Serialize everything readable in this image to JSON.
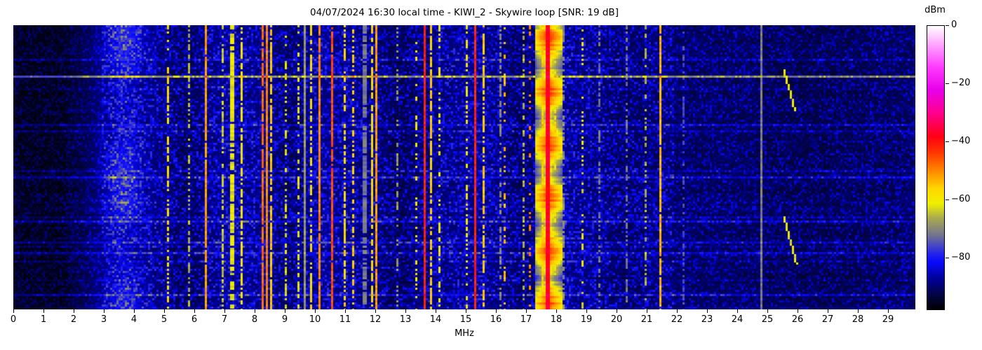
{
  "chart_data": {
    "type": "heatmap",
    "title": "04/07/2024 16:30 local time - KIWI_2 - Skywire loop [SNR: 19 dB]",
    "xlabel": "MHz",
    "x_range": [
      0,
      29.9
    ],
    "x_ticks": [
      "0",
      "1",
      "2",
      "3",
      "4",
      "5",
      "6",
      "7",
      "8",
      "9",
      "10",
      "11",
      "12",
      "13",
      "14",
      "15",
      "16",
      "17",
      "18",
      "19",
      "20",
      "21",
      "22",
      "23",
      "24",
      "25",
      "26",
      "27",
      "28",
      "29"
    ],
    "grid": false,
    "colorbar": {
      "label": "dBm",
      "tick_labels": [
        "0",
        "−20",
        "−40",
        "−60",
        "−80"
      ],
      "tick_values": [
        0,
        -20,
        -40,
        -60,
        -80
      ],
      "range_db": [
        0,
        -97.6
      ],
      "position": "right"
    },
    "colormap": [
      [
        0,
        255,
        255,
        255
      ],
      [
        -6,
        255,
        170,
        255
      ],
      [
        -14,
        255,
        60,
        255
      ],
      [
        -22,
        232,
        0,
        232
      ],
      [
        -30,
        255,
        0,
        140
      ],
      [
        -38,
        255,
        0,
        20
      ],
      [
        -44,
        255,
        60,
        0
      ],
      [
        -50,
        255,
        140,
        0
      ],
      [
        -56,
        255,
        215,
        0
      ],
      [
        -61,
        240,
        240,
        0
      ],
      [
        -66,
        170,
        170,
        80
      ],
      [
        -72,
        115,
        115,
        145
      ],
      [
        -78,
        40,
        40,
        230
      ],
      [
        -81,
        10,
        10,
        255
      ],
      [
        -87,
        0,
        0,
        150
      ],
      [
        -93,
        3,
        3,
        60
      ],
      [
        -97.6,
        0,
        0,
        0
      ]
    ],
    "noise": {
      "floor_dark": -97,
      "dark_limit_mhz": 1.6,
      "ramp_limit_mhz": 2.9,
      "floor_mid": -91.3,
      "mid_limit_mhz": 21.9,
      "floor_high": -93,
      "spread_dark": 8,
      "spread_mid": 13,
      "spread_high": 10,
      "shapes": [
        [
          5.75,
          -2.5,
          0.45
        ],
        [
          9.15,
          -2.2,
          0.35
        ],
        [
          12.85,
          -2.8,
          0.55
        ],
        [
          16.9,
          -2.2,
          0.5
        ],
        [
          20.4,
          -1.8,
          0.7
        ],
        [
          26.5,
          -1.2,
          1.8
        ],
        [
          7.3,
          1.4,
          0.5
        ],
        [
          10.3,
          1.0,
          0.6
        ],
        [
          15.4,
          0.8,
          0.5
        ],
        [
          18.0,
          1.2,
          0.5
        ]
      ],
      "cloud": {
        "center": 3.68,
        "sigma": 0.45,
        "amp": 9.5
      }
    },
    "signals": [
      [
        5.15,
        -58,
        0.05,
        0.6
      ],
      [
        5.85,
        -66,
        0.05,
        0.5
      ],
      [
        6.35,
        -52,
        0.06,
        0.95
      ],
      [
        6.95,
        -64,
        0.05,
        0.55
      ],
      [
        7.25,
        -62,
        0.12,
        0.8
      ],
      [
        7.58,
        -60,
        0.05,
        0.7
      ],
      [
        8.23,
        -48,
        0.05,
        0.9
      ],
      [
        8.4,
        -50,
        0.06,
        1
      ],
      [
        8.52,
        -56,
        0.04,
        0.8
      ],
      [
        9.05,
        -62,
        0.04,
        0.5
      ],
      [
        9.45,
        -62,
        0.04,
        0.5
      ],
      [
        9.62,
        -68,
        0.08,
        1
      ],
      [
        9.85,
        -58,
        0.05,
        0.6
      ],
      [
        10.12,
        -50,
        0.08,
        0.95
      ],
      [
        10.56,
        -46,
        0.05,
        0.95
      ],
      [
        11.0,
        -57,
        0.05,
        0.7
      ],
      [
        11.25,
        -56,
        0.05,
        0.5
      ],
      [
        11.62,
        -72,
        0.12,
        0.9
      ],
      [
        11.88,
        -58,
        0.05,
        0.8
      ],
      [
        12.05,
        -52,
        0.07,
        0.95
      ],
      [
        12.75,
        -68,
        0.04,
        0.4
      ],
      [
        13.35,
        -60,
        0.04,
        0.3
      ],
      [
        13.62,
        -42,
        0.08,
        1
      ],
      [
        13.8,
        -56,
        0.05,
        0.8
      ],
      [
        14.1,
        -60,
        0.04,
        0.35
      ],
      [
        15.0,
        -60,
        0.04,
        0.5
      ],
      [
        15.32,
        -42,
        0.09,
        1
      ],
      [
        15.58,
        -56,
        0.05,
        0.7
      ],
      [
        16.1,
        -70,
        0.1,
        0.6
      ],
      [
        16.3,
        -54,
        0.04,
        0.25
      ],
      [
        16.9,
        -66,
        0.05,
        0.5
      ],
      [
        17.08,
        -50,
        0.04,
        0.22
      ],
      [
        17.5,
        -56,
        0.05,
        0.85
      ],
      [
        17.68,
        -37,
        0.14,
        1,
        1
      ],
      [
        17.95,
        -58,
        0.05,
        0.5
      ],
      [
        18.25,
        -70,
        0.08,
        0.6
      ],
      [
        18.85,
        -62,
        0.04,
        0.3
      ],
      [
        19.4,
        -72,
        0.06,
        0.5
      ],
      [
        20.3,
        -72,
        0.06,
        0.5
      ],
      [
        20.95,
        -66,
        0.04,
        0.4
      ],
      [
        21.45,
        -54,
        0.05,
        0.95
      ],
      [
        22.2,
        -76,
        0.06,
        0.5
      ],
      [
        24.8,
        -71,
        0.03,
        1
      ]
    ],
    "chirps": [
      [
        25.5,
        25.85,
        21,
        40,
        -61
      ],
      [
        25.5,
        25.9,
        91,
        113,
        -61
      ]
    ],
    "burst_rows": [
      [
        24,
        21
      ],
      [
        72,
        8
      ],
      [
        103,
        7
      ]
    ],
    "seed": 20240407
  }
}
